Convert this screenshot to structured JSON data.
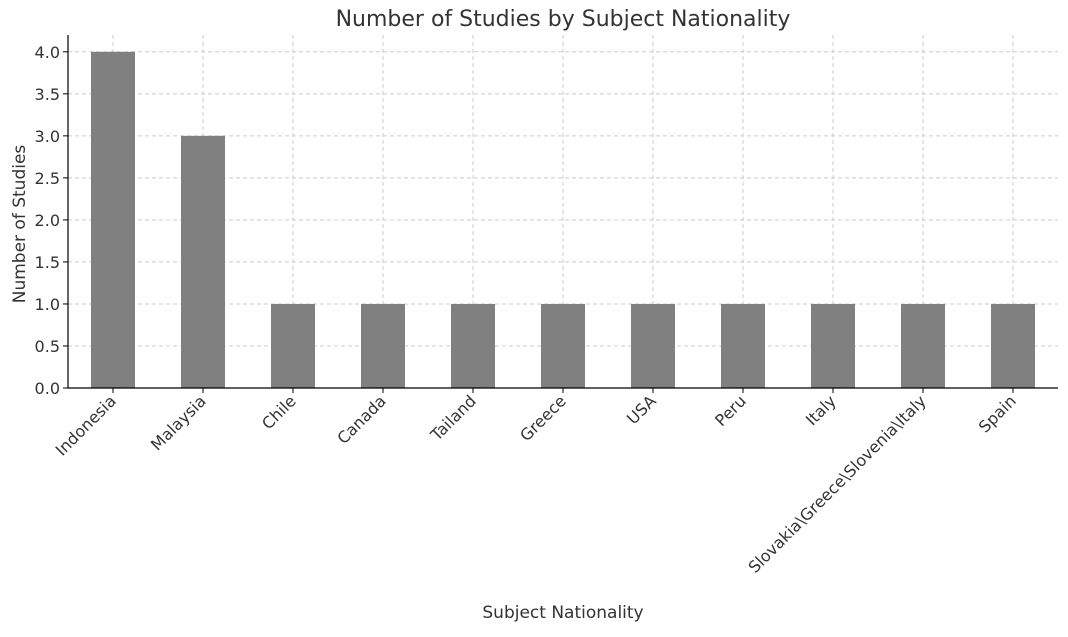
{
  "chart_data": {
    "type": "bar",
    "title": "Number of Studies by Subject Nationality",
    "xlabel": "Subject Nationality",
    "ylabel": "Number of Studies",
    "categories": [
      "Indonesia",
      "Malaysia",
      "Chile",
      "Canada",
      "Tailand",
      "Greece",
      "USA",
      "Peru",
      "Italy",
      "Slovakia\\Greece\\Slovenia\\Italy",
      "Spain"
    ],
    "values": [
      4,
      3,
      1,
      1,
      1,
      1,
      1,
      1,
      1,
      1,
      1
    ],
    "ylim": [
      0,
      4.2
    ],
    "yticks": [
      "0.0",
      "0.5",
      "1.0",
      "1.5",
      "2.0",
      "2.5",
      "3.0",
      "3.5",
      "4.0"
    ],
    "grid": true,
    "colors": {
      "bar": "#808080",
      "grid": "#cccccc",
      "axis": "#000000",
      "text": "#333333"
    }
  }
}
